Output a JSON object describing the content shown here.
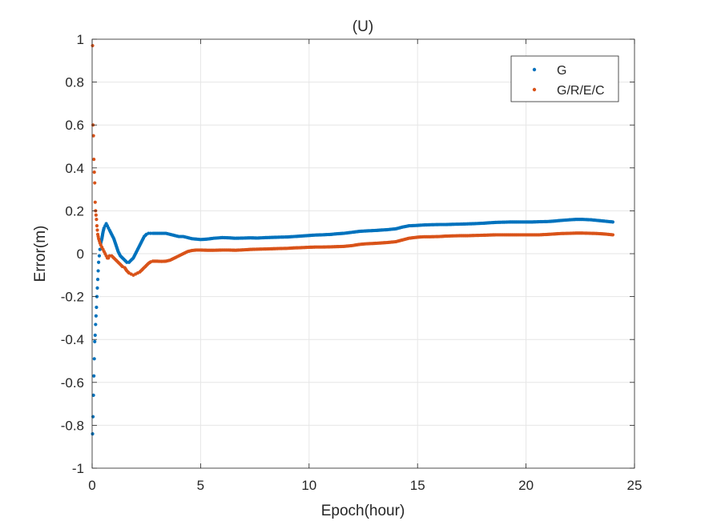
{
  "chart_data": {
    "type": "scatter",
    "title": "(U)",
    "xlabel": "Epoch(hour)",
    "ylabel": "Error(m)",
    "xlim": [
      0,
      25
    ],
    "ylim": [
      -1,
      1
    ],
    "xticks": [
      0,
      5,
      10,
      15,
      20,
      25
    ],
    "yticks": [
      1,
      0.8,
      0.6,
      0.4,
      0.2,
      0,
      -0.2,
      -0.4,
      -0.6,
      -0.8,
      -1
    ],
    "xtick_labels": [
      "0",
      "5",
      "10",
      "15",
      "20",
      "25"
    ],
    "ytick_labels": [
      "1",
      "0.8",
      "0.6",
      "0.4",
      "0.2",
      "0",
      "-0.2",
      "-0.4",
      "-0.6",
      "-0.8",
      "-1"
    ],
    "grid": true,
    "legend_position": "top-right",
    "series": [
      {
        "name": "G",
        "color": "#0072BD",
        "x": [
          0.02,
          0.04,
          0.06,
          0.08,
          0.1,
          0.12,
          0.14,
          0.16,
          0.18,
          0.2,
          0.22,
          0.24,
          0.26,
          0.28,
          0.3,
          0.33,
          0.36,
          0.4,
          0.45,
          0.5,
          0.55,
          0.6,
          0.65,
          0.7,
          0.75,
          0.8,
          0.9,
          1.0,
          1.1,
          1.2,
          1.3,
          1.4,
          1.5,
          1.6,
          1.7,
          1.8,
          1.9,
          2.0,
          2.1,
          2.2,
          2.3,
          2.4,
          2.5,
          2.6,
          2.7,
          2.8,
          3.0,
          3.2,
          3.4,
          3.6,
          3.8,
          4.0,
          4.2,
          4.4,
          4.6,
          4.8,
          5.0,
          5.3,
          5.6,
          6.0,
          6.3,
          6.6,
          7.0,
          7.3,
          7.6,
          8.0,
          8.3,
          8.6,
          9.0,
          9.3,
          9.6,
          10.0,
          10.3,
          10.6,
          11.0,
          11.3,
          11.6,
          12.0,
          12.3,
          12.6,
          13.0,
          13.3,
          13.6,
          14.0,
          14.3,
          14.6,
          15.0,
          15.3,
          15.6,
          16.0,
          16.3,
          16.6,
          17.0,
          17.3,
          17.6,
          18.0,
          18.3,
          18.6,
          19.0,
          19.3,
          19.6,
          20.0,
          20.3,
          20.6,
          21.0,
          21.3,
          21.6,
          22.0,
          22.3,
          22.6,
          23.0,
          23.3,
          23.6,
          24.0
        ],
        "y": [
          -0.84,
          -0.76,
          -0.66,
          -0.57,
          -0.49,
          -0.41,
          -0.38,
          -0.33,
          -0.29,
          -0.25,
          -0.2,
          -0.16,
          -0.12,
          -0.08,
          -0.04,
          -0.01,
          0.02,
          0.05,
          0.07,
          0.1,
          0.12,
          0.13,
          0.14,
          0.13,
          0.12,
          0.11,
          0.09,
          0.07,
          0.04,
          0.01,
          -0.01,
          -0.02,
          -0.03,
          -0.04,
          -0.04,
          -0.03,
          -0.02,
          0.0,
          0.02,
          0.04,
          0.06,
          0.08,
          0.09,
          0.095,
          0.095,
          0.095,
          0.095,
          0.095,
          0.095,
          0.09,
          0.085,
          0.08,
          0.08,
          0.075,
          0.07,
          0.068,
          0.066,
          0.068,
          0.072,
          0.075,
          0.074,
          0.072,
          0.073,
          0.074,
          0.073,
          0.075,
          0.076,
          0.077,
          0.078,
          0.08,
          0.082,
          0.085,
          0.087,
          0.088,
          0.09,
          0.093,
          0.095,
          0.1,
          0.104,
          0.106,
          0.108,
          0.11,
          0.112,
          0.116,
          0.124,
          0.13,
          0.132,
          0.134,
          0.135,
          0.136,
          0.136,
          0.137,
          0.138,
          0.139,
          0.14,
          0.142,
          0.144,
          0.146,
          0.147,
          0.148,
          0.148,
          0.148,
          0.148,
          0.149,
          0.15,
          0.152,
          0.155,
          0.158,
          0.16,
          0.16,
          0.158,
          0.155,
          0.152,
          0.148
        ]
      },
      {
        "name": "G/R/E/C",
        "color": "#D95319",
        "x": [
          0.02,
          0.04,
          0.06,
          0.08,
          0.1,
          0.12,
          0.14,
          0.16,
          0.18,
          0.2,
          0.22,
          0.24,
          0.26,
          0.28,
          0.3,
          0.33,
          0.36,
          0.4,
          0.45,
          0.5,
          0.55,
          0.6,
          0.65,
          0.7,
          0.75,
          0.8,
          0.9,
          1.0,
          1.1,
          1.2,
          1.3,
          1.4,
          1.5,
          1.6,
          1.7,
          1.8,
          1.9,
          2.0,
          2.1,
          2.2,
          2.3,
          2.4,
          2.5,
          2.6,
          2.7,
          2.8,
          3.0,
          3.2,
          3.4,
          3.6,
          3.8,
          4.0,
          4.2,
          4.4,
          4.6,
          4.8,
          5.0,
          5.3,
          5.6,
          6.0,
          6.3,
          6.6,
          7.0,
          7.3,
          7.6,
          8.0,
          8.3,
          8.6,
          9.0,
          9.3,
          9.6,
          10.0,
          10.3,
          10.6,
          11.0,
          11.3,
          11.6,
          12.0,
          12.3,
          12.6,
          13.0,
          13.3,
          13.6,
          14.0,
          14.3,
          14.6,
          15.0,
          15.3,
          15.6,
          16.0,
          16.3,
          16.6,
          17.0,
          17.3,
          17.6,
          18.0,
          18.3,
          18.6,
          19.0,
          19.3,
          19.6,
          20.0,
          20.3,
          20.6,
          21.0,
          21.3,
          21.6,
          22.0,
          22.3,
          22.6,
          23.0,
          23.3,
          23.6,
          24.0
        ],
        "y": [
          0.97,
          0.6,
          0.55,
          0.44,
          0.38,
          0.33,
          0.24,
          0.2,
          0.18,
          0.16,
          0.13,
          0.11,
          0.09,
          0.08,
          0.07,
          0.06,
          0.05,
          0.04,
          0.03,
          0.02,
          0.01,
          0.0,
          -0.01,
          -0.02,
          -0.02,
          -0.01,
          -0.01,
          -0.02,
          -0.03,
          -0.04,
          -0.05,
          -0.06,
          -0.065,
          -0.08,
          -0.09,
          -0.095,
          -0.1,
          -0.095,
          -0.09,
          -0.085,
          -0.075,
          -0.065,
          -0.055,
          -0.045,
          -0.038,
          -0.035,
          -0.035,
          -0.036,
          -0.035,
          -0.03,
          -0.02,
          -0.01,
          0.0,
          0.01,
          0.015,
          0.017,
          0.017,
          0.016,
          0.016,
          0.017,
          0.017,
          0.016,
          0.018,
          0.02,
          0.021,
          0.022,
          0.023,
          0.024,
          0.025,
          0.027,
          0.028,
          0.03,
          0.031,
          0.031,
          0.032,
          0.033,
          0.034,
          0.038,
          0.043,
          0.046,
          0.048,
          0.05,
          0.052,
          0.056,
          0.064,
          0.072,
          0.077,
          0.079,
          0.079,
          0.08,
          0.082,
          0.083,
          0.084,
          0.084,
          0.085,
          0.086,
          0.087,
          0.088,
          0.088,
          0.088,
          0.088,
          0.088,
          0.088,
          0.088,
          0.09,
          0.092,
          0.094,
          0.095,
          0.096,
          0.096,
          0.095,
          0.094,
          0.092,
          0.088
        ]
      }
    ]
  }
}
